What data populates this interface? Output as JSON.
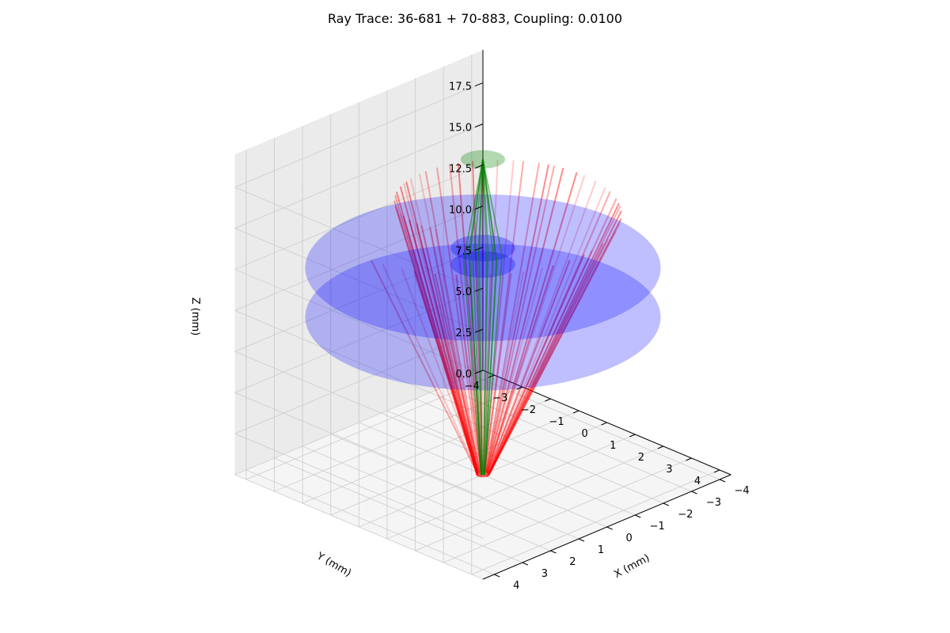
{
  "chart_data": {
    "type": "3d-ray-trace",
    "title": "Ray Trace: 36-681 + 70-883, Coupling: 0.0100",
    "xlabel": "X (mm)",
    "ylabel": "Y (mm)",
    "zlabel": "Z (mm)",
    "xlim": [
      -4.4,
      4.4
    ],
    "ylim": [
      -4.4,
      4.4
    ],
    "zlim": [
      0,
      19.5
    ],
    "x_ticks": [
      -4,
      -3,
      -2,
      -1,
      0,
      1,
      2,
      3,
      4
    ],
    "y_ticks": [
      -4,
      -3,
      -2,
      -1,
      0,
      1,
      2,
      3,
      4
    ],
    "z_ticks": [
      0.0,
      2.5,
      5.0,
      7.5,
      10.0,
      12.5,
      15.0,
      17.5
    ],
    "x_tick_labels": [
      "−4",
      "−3",
      "−2",
      "−1",
      "0",
      "1",
      "2",
      "3",
      "4"
    ],
    "y_tick_labels": [
      "−4",
      "−3",
      "−2",
      "−1",
      "0",
      "1",
      "2",
      "3",
      "4"
    ],
    "z_tick_labels": [
      "0.0",
      "2.5",
      "5.0",
      "7.5",
      "10.0",
      "12.5",
      "15.0",
      "17.5"
    ],
    "grid": true,
    "surfaces": [
      {
        "z": 9.6,
        "radius": 4.4,
        "color": "#0000ff",
        "alpha": 0.25
      },
      {
        "z": 12.6,
        "radius": 4.4,
        "color": "#0000ff",
        "alpha": 0.25
      },
      {
        "z": 12.8,
        "radius": 0.8,
        "color": "#0000ff",
        "alpha": 0.3
      },
      {
        "z": 13.8,
        "radius": 0.8,
        "color": "#0000ff",
        "alpha": 0.3
      },
      {
        "z": 19.2,
        "radius": 0.55,
        "color": "#008000",
        "alpha": 0.3
      }
    ],
    "source_rays": {
      "origin_z": 0,
      "end_z": 16.2,
      "count": 60,
      "color": "#ff0000",
      "max_half_angle_deg": 14
    },
    "coupled_rays": {
      "origin_z": 0,
      "focus_z": 19.2,
      "count": 12,
      "color": "#008000"
    }
  }
}
